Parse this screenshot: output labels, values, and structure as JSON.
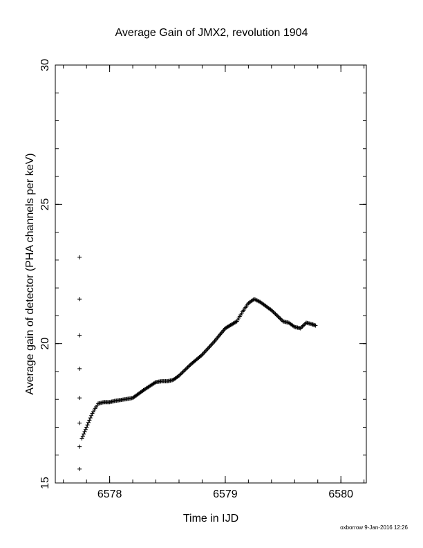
{
  "chart_data": {
    "type": "scatter",
    "title": "Average Gain of JMX2, revolution 1904",
    "xlabel": "Time in IJD",
    "ylabel": "Average gain of detector (PHA channels per keV)",
    "xlim": [
      6577.53,
      6580.22
    ],
    "ylim": [
      15,
      30
    ],
    "xticks_major": [
      6578,
      6579,
      6580
    ],
    "xticks_minor_step": 0.2,
    "yticks_major": [
      15,
      20,
      25,
      30
    ],
    "yticks_minor_step": 1,
    "grid": false,
    "legend": "none",
    "marker": "plus",
    "marker_color": "#000000",
    "outliers": {
      "x": [
        6577.74,
        6577.74,
        6577.74,
        6577.74,
        6577.74,
        6577.74,
        6577.74,
        6577.74
      ],
      "y": [
        23.1,
        21.6,
        20.3,
        19.1,
        18.05,
        17.15,
        16.3,
        15.5
      ]
    },
    "trend": {
      "x": [
        6577.76,
        6577.8,
        6577.85,
        6577.9,
        6577.95,
        6578.0,
        6578.05,
        6578.1,
        6578.2,
        6578.3,
        6578.4,
        6578.45,
        6578.5,
        6578.55,
        6578.6,
        6578.7,
        6578.8,
        6578.9,
        6579.0,
        6579.1,
        6579.15,
        6579.2,
        6579.25,
        6579.3,
        6579.35,
        6579.4,
        6579.45,
        6579.5,
        6579.55,
        6579.6,
        6579.65,
        6579.7,
        6579.75,
        6579.78
      ],
      "y": [
        16.6,
        17.0,
        17.5,
        17.85,
        17.9,
        17.9,
        17.95,
        17.98,
        18.05,
        18.35,
        18.62,
        18.65,
        18.65,
        18.7,
        18.85,
        19.25,
        19.6,
        20.05,
        20.55,
        20.8,
        21.15,
        21.45,
        21.6,
        21.5,
        21.35,
        21.2,
        21.0,
        20.8,
        20.75,
        20.6,
        20.55,
        20.75,
        20.7,
        20.65
      ]
    }
  },
  "footer": "oxborrow  9-Jan-2016 12:26"
}
